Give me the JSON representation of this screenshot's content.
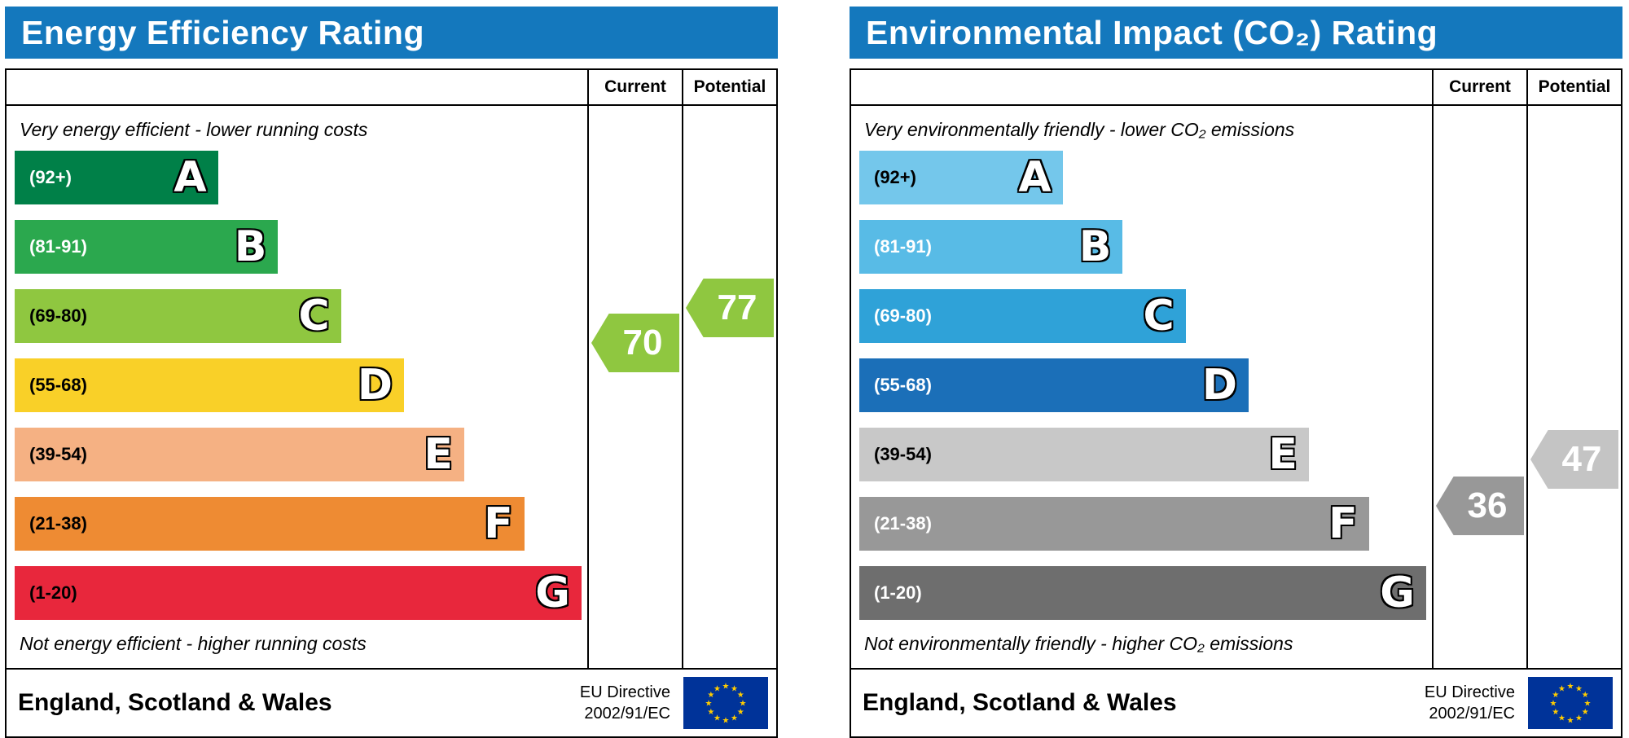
{
  "flag": {
    "bg": "#003399",
    "stars": "#ffcc00"
  },
  "panels": [
    {
      "title": "Energy Efficiency Rating",
      "header_bg": "#1478bd",
      "columns": {
        "current": "Current",
        "potential": "Potential"
      },
      "top_note": "Very energy efficient - lower running costs",
      "bottom_note": "Not energy efficient - higher running costs",
      "bands": [
        {
          "range": "(92+)",
          "letter": "A",
          "color": "#008048",
          "range_color": "#ffffff",
          "width_pct": "35.5"
        },
        {
          "range": "(81-91)",
          "letter": "B",
          "color": "#2ba84e",
          "range_color": "#ffffff",
          "width_pct": "46"
        },
        {
          "range": "(69-80)",
          "letter": "C",
          "color": "#8fc740",
          "range_color": "#000000",
          "width_pct": "57"
        },
        {
          "range": "(55-68)",
          "letter": "D",
          "color": "#f9d028",
          "range_color": "#000000",
          "width_pct": "68"
        },
        {
          "range": "(39-54)",
          "letter": "E",
          "color": "#f5b183",
          "range_color": "#000000",
          "width_pct": "78.5"
        },
        {
          "range": "(21-38)",
          "letter": "F",
          "color": "#ee8b33",
          "range_color": "#000000",
          "width_pct": "89"
        },
        {
          "range": "(1-20)",
          "letter": "G",
          "color": "#e8273c",
          "range_color": "#000000",
          "width_pct": "99"
        }
      ],
      "current": {
        "value": "70",
        "color": "#8fc740"
      },
      "potential": {
        "value": "77",
        "color": "#8fc740"
      },
      "footer": {
        "region": "England, Scotland & Wales",
        "directive_line1": "EU Directive",
        "directive_line2": "2002/91/EC"
      }
    },
    {
      "title": "Environmental Impact (CO₂) Rating",
      "header_bg": "#1478bd",
      "columns": {
        "current": "Current",
        "potential": "Potential"
      },
      "top_note": "Very environmentally friendly - lower CO₂ emissions",
      "bottom_note": "Not environmentally friendly - higher CO₂ emissions",
      "bands": [
        {
          "range": "(92+)",
          "letter": "A",
          "color": "#74c7eb",
          "range_color": "#000000",
          "width_pct": "35.5"
        },
        {
          "range": "(81-91)",
          "letter": "B",
          "color": "#58bbe6",
          "range_color": "#ffffff",
          "width_pct": "46"
        },
        {
          "range": "(69-80)",
          "letter": "C",
          "color": "#2fa2d8",
          "range_color": "#ffffff",
          "width_pct": "57"
        },
        {
          "range": "(55-68)",
          "letter": "D",
          "color": "#1b6fb8",
          "range_color": "#ffffff",
          "width_pct": "68"
        },
        {
          "range": "(39-54)",
          "letter": "E",
          "color": "#c8c8c8",
          "range_color": "#000000",
          "width_pct": "78.5"
        },
        {
          "range": "(21-38)",
          "letter": "F",
          "color": "#989898",
          "range_color": "#ffffff",
          "width_pct": "89"
        },
        {
          "range": "(1-20)",
          "letter": "G",
          "color": "#6e6e6e",
          "range_color": "#ffffff",
          "width_pct": "99"
        }
      ],
      "current": {
        "value": "36",
        "color": "#989898"
      },
      "potential": {
        "value": "47",
        "color": "#c4c4c4"
      },
      "footer": {
        "region": "England, Scotland & Wales",
        "directive_line1": "EU Directive",
        "directive_line2": "2002/91/EC"
      }
    }
  ],
  "chart_data": [
    {
      "type": "bar",
      "title": "Energy Efficiency Rating",
      "top_note": "Very energy efficient - lower running costs",
      "bottom_note": "Not energy efficient - higher running costs",
      "columns": [
        "Current",
        "Potential"
      ],
      "bands": [
        {
          "letter": "A",
          "label": "(92+)",
          "min": 92,
          "max": null
        },
        {
          "letter": "B",
          "label": "(81-91)",
          "min": 81,
          "max": 91
        },
        {
          "letter": "C",
          "label": "(69-80)",
          "min": 69,
          "max": 80
        },
        {
          "letter": "D",
          "label": "(55-68)",
          "min": 55,
          "max": 68
        },
        {
          "letter": "E",
          "label": "(39-54)",
          "min": 39,
          "max": 54
        },
        {
          "letter": "F",
          "label": "(21-38)",
          "min": 21,
          "max": 38
        },
        {
          "letter": "G",
          "label": "(1-20)",
          "min": 1,
          "max": 20
        }
      ],
      "current": 70,
      "current_band": "C",
      "potential": 77,
      "potential_band": "C",
      "region": "England, Scotland & Wales",
      "directive": "EU Directive 2002/91/EC"
    },
    {
      "type": "bar",
      "title": "Environmental Impact (CO₂) Rating",
      "top_note": "Very environmentally friendly - lower CO₂ emissions",
      "bottom_note": "Not environmentally friendly - higher CO₂ emissions",
      "columns": [
        "Current",
        "Potential"
      ],
      "bands": [
        {
          "letter": "A",
          "label": "(92+)",
          "min": 92,
          "max": null
        },
        {
          "letter": "B",
          "label": "(81-91)",
          "min": 81,
          "max": 91
        },
        {
          "letter": "C",
          "label": "(69-80)",
          "min": 69,
          "max": 80
        },
        {
          "letter": "D",
          "label": "(55-68)",
          "min": 55,
          "max": 68
        },
        {
          "letter": "E",
          "label": "(39-54)",
          "min": 39,
          "max": 54
        },
        {
          "letter": "F",
          "label": "(21-38)",
          "min": 21,
          "max": 38
        },
        {
          "letter": "G",
          "label": "(1-20)",
          "min": 1,
          "max": 20
        }
      ],
      "current": 36,
      "current_band": "F",
      "potential": 47,
      "potential_band": "E",
      "region": "England, Scotland & Wales",
      "directive": "EU Directive 2002/91/EC"
    }
  ]
}
